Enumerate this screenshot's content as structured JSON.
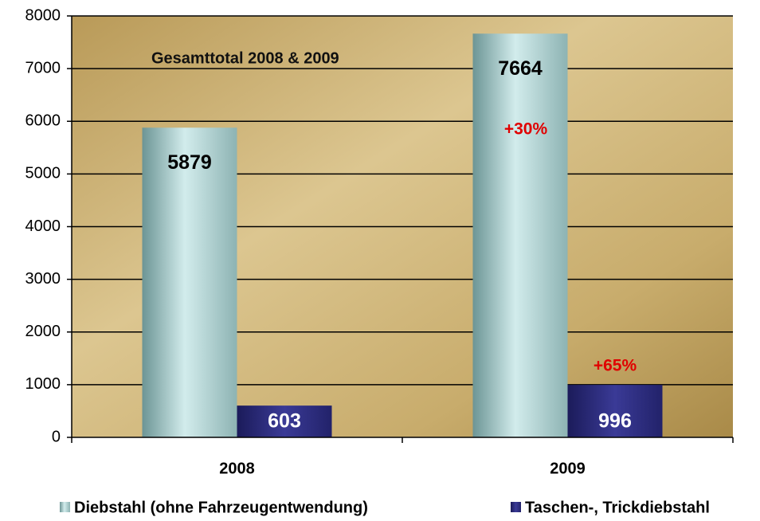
{
  "chart_data": {
    "type": "bar",
    "title": "Gesamttotal 2008 & 2009",
    "categories": [
      "2008",
      "2009"
    ],
    "series": [
      {
        "name": "Diebstahl (ohne Fahrzeugentwendung)",
        "color": "#a9d2d2",
        "values": [
          5879,
          7664
        ]
      },
      {
        "name": "Taschen-, Trickdiebstahl",
        "color": "#2b2b80",
        "values": [
          603,
          996
        ]
      }
    ],
    "annotations": [
      "+30%",
      "+65%"
    ],
    "ylim": [
      0,
      8000
    ],
    "yticks": [
      0,
      1000,
      2000,
      3000,
      4000,
      5000,
      6000,
      7000,
      8000
    ],
    "grid": true,
    "legend": "bottom"
  }
}
